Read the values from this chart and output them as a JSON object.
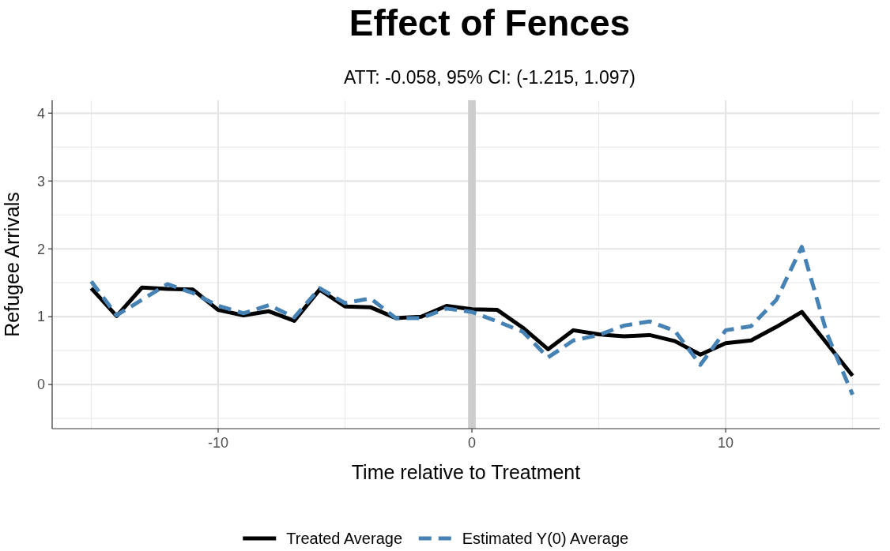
{
  "chart_data": {
    "type": "line",
    "title": "Effect of Fences",
    "subtitle": "ATT: -0.058, 95% CI: (-1.215, 1.097)",
    "xlabel": "Time relative to Treatment",
    "ylabel": "Refugee Arrivals",
    "x": [
      -15,
      -14,
      -13,
      -12,
      -11,
      -10,
      -9,
      -8,
      -7,
      -6,
      -5,
      -4,
      -3,
      -2,
      -1,
      0,
      1,
      2,
      3,
      4,
      5,
      6,
      7,
      8,
      9,
      10,
      11,
      12,
      13,
      14,
      15
    ],
    "series": [
      {
        "name": "Treated Average",
        "color": "#000000",
        "line_style": "solid",
        "values": [
          1.42,
          1.01,
          1.43,
          1.41,
          1.4,
          1.1,
          1.02,
          1.08,
          0.94,
          1.4,
          1.15,
          1.14,
          0.98,
          1.0,
          1.16,
          1.11,
          1.1,
          0.84,
          0.52,
          0.8,
          0.74,
          0.71,
          0.73,
          0.64,
          0.44,
          0.61,
          0.65,
          0.85,
          1.07,
          0.6,
          0.13
        ]
      },
      {
        "name": "Estimated Y(0) Average",
        "color": "#4682b4",
        "line_style": "dashed",
        "values": [
          1.52,
          1.02,
          1.25,
          1.48,
          1.35,
          1.16,
          1.05,
          1.17,
          0.99,
          1.42,
          1.2,
          1.27,
          0.98,
          0.98,
          1.12,
          1.07,
          0.93,
          0.78,
          0.4,
          0.65,
          0.73,
          0.87,
          0.93,
          0.79,
          0.29,
          0.8,
          0.86,
          1.25,
          2.03,
          0.74,
          -0.15
        ]
      }
    ],
    "xlim": [
      -16.54,
      16.07
    ],
    "xticks": [
      -10,
      0,
      10
    ],
    "ylim": [
      -0.65,
      4.19
    ],
    "yticks": [
      0,
      1,
      2,
      3,
      4
    ],
    "bands": [
      {
        "axis": "x",
        "from": -0.15,
        "to": 0.15,
        "color": "#cccccc"
      }
    ],
    "grid": true,
    "legend": "bottom"
  }
}
